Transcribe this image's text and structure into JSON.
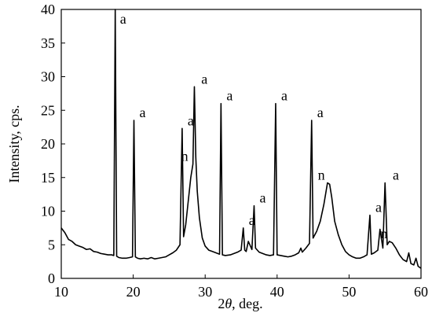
{
  "chart_data": {
    "type": "line",
    "xlabel_prefix": "2",
    "xlabel_symbol": "θ",
    "xlabel_suffix": ", deg.",
    "ylabel": "Intensity, cps.",
    "xlim": [
      10,
      60
    ],
    "ylim": [
      0,
      40
    ],
    "xticks": [
      "10",
      "20",
      "30",
      "40",
      "50",
      "60"
    ],
    "yticks": [
      "0",
      "5",
      "10",
      "15",
      "20",
      "25",
      "30",
      "35",
      "40"
    ],
    "grid": false,
    "line_color": "#000000",
    "series": [
      {
        "x": [
          10.0,
          10.5,
          11.0,
          11.5,
          12.0,
          12.5,
          13.0,
          13.5,
          14.0,
          14.5,
          15.0,
          15.5,
          16.0,
          16.5,
          17.0,
          17.3,
          17.5,
          17.7,
          18.0,
          18.5,
          19.0,
          19.5,
          19.9,
          20.1,
          20.3,
          20.6,
          21.0,
          21.5,
          22.0,
          22.5,
          23.0,
          23.5,
          24.0,
          24.5,
          25.0,
          25.5,
          26.0,
          26.5,
          26.8,
          27.0,
          27.3,
          27.6,
          28.0,
          28.3,
          28.5,
          28.7,
          28.9,
          29.2,
          29.6,
          30.0,
          30.5,
          31.0,
          31.5,
          32.0,
          32.2,
          32.4,
          32.8,
          33.5,
          34.0,
          34.5,
          35.0,
          35.3,
          35.5,
          35.7,
          36.0,
          36.5,
          36.8,
          37.0,
          37.5,
          38.0,
          38.5,
          39.0,
          39.5,
          39.8,
          40.0,
          40.5,
          41.0,
          41.5,
          42.0,
          42.5,
          43.0,
          43.3,
          43.5,
          44.0,
          44.5,
          44.8,
          45.0,
          45.5,
          46.0,
          46.5,
          47.0,
          47.3,
          47.6,
          48.0,
          48.5,
          49.0,
          49.5,
          50.0,
          50.5,
          51.0,
          51.5,
          52.0,
          52.5,
          52.9,
          53.1,
          53.5,
          54.0,
          54.3,
          54.7,
          55.0,
          55.3,
          55.6,
          56.0,
          56.5,
          57.0,
          57.5,
          58.0,
          58.3,
          58.6,
          59.0,
          59.3,
          59.6,
          60.0
        ],
        "y": [
          7.5,
          6.8,
          5.8,
          5.5,
          5.0,
          4.8,
          4.6,
          4.3,
          4.4,
          4.0,
          3.9,
          3.7,
          3.6,
          3.5,
          3.5,
          3.4,
          40.0,
          3.3,
          3.1,
          3.0,
          3.0,
          3.1,
          3.2,
          23.5,
          3.2,
          3.0,
          2.9,
          3.0,
          2.9,
          3.1,
          2.9,
          3.0,
          3.1,
          3.2,
          3.5,
          3.8,
          4.2,
          5.0,
          22.3,
          6.2,
          8.0,
          11.0,
          15.0,
          17.0,
          28.5,
          18.0,
          13.0,
          9.0,
          6.0,
          4.8,
          4.2,
          4.0,
          3.8,
          3.6,
          26.0,
          3.5,
          3.4,
          3.5,
          3.7,
          3.9,
          4.2,
          7.5,
          4.2,
          4.0,
          5.5,
          4.3,
          10.8,
          4.5,
          3.9,
          3.7,
          3.5,
          3.4,
          3.5,
          26.0,
          3.5,
          3.4,
          3.3,
          3.2,
          3.3,
          3.5,
          3.8,
          4.5,
          3.9,
          4.5,
          5.2,
          23.5,
          6.0,
          7.0,
          8.5,
          11.0,
          14.2,
          14.0,
          12.0,
          8.5,
          6.5,
          5.0,
          4.0,
          3.5,
          3.2,
          3.0,
          3.0,
          3.2,
          3.5,
          9.4,
          3.6,
          3.8,
          4.2,
          7.3,
          4.5,
          14.2,
          5.0,
          5.5,
          5.3,
          4.5,
          3.5,
          2.8,
          2.5,
          3.8,
          2.2,
          2.0,
          3.0,
          1.8,
          1.5
        ]
      }
    ],
    "annotations": [
      {
        "label": "a",
        "x": 17.4,
        "y": 40.0
      },
      {
        "label": "a",
        "x": 20.1,
        "y": 23.5
      },
      {
        "label": "a",
        "x": 26.8,
        "y": 22.3
      },
      {
        "label": "a",
        "x": 28.7,
        "y": 28.5
      },
      {
        "label": "n",
        "x": 28.3,
        "y": 17.0
      },
      {
        "label": "a",
        "x": 32.2,
        "y": 26.0
      },
      {
        "label": "a",
        "x": 35.3,
        "y": 7.5
      },
      {
        "label": "a",
        "x": 36.8,
        "y": 10.8
      },
      {
        "label": "a",
        "x": 39.8,
        "y": 26.0
      },
      {
        "label": "a",
        "x": 44.8,
        "y": 23.5
      },
      {
        "label": "n",
        "x": 47.3,
        "y": 14.2
      },
      {
        "label": "a",
        "x": 52.9,
        "y": 9.4
      },
      {
        "label": "a",
        "x": 55.3,
        "y": 14.2
      },
      {
        "label": "n",
        "x": 56.0,
        "y": 5.5
      }
    ]
  }
}
